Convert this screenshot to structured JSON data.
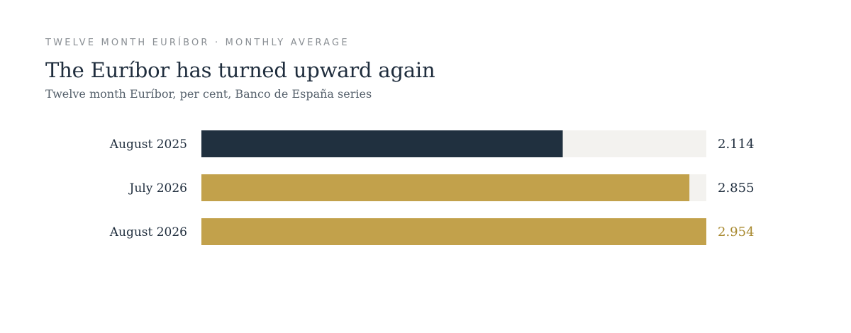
{
  "header": {
    "kicker": "TWELVE MONTH EURÍBOR · MONTHLY AVERAGE",
    "title": "The Euríbor has turned upward again",
    "subtitle": "Twelve month Euríbor, per cent, Banco de España series"
  },
  "colors": {
    "bar_past": "#20303f",
    "bar_recent": "#c2a14b",
    "track": "#f3f2ef",
    "label_default": "#1f2d3d",
    "label_highlight": "#a8892f"
  },
  "chart_data": {
    "type": "bar",
    "orientation": "horizontal",
    "categories": [
      "August 2025",
      "July 2026",
      "August 2026"
    ],
    "values": [
      2.114,
      2.855,
      2.954
    ],
    "value_labels": [
      "2.114",
      "2.855",
      "2.954"
    ],
    "title": "The Euríbor has turned upward again",
    "subtitle": "Twelve month Euríbor, per cent, Banco de España series",
    "xlabel": "",
    "ylabel": "",
    "xlim": [
      0,
      2.954
    ],
    "grid": false,
    "legend": "none"
  }
}
